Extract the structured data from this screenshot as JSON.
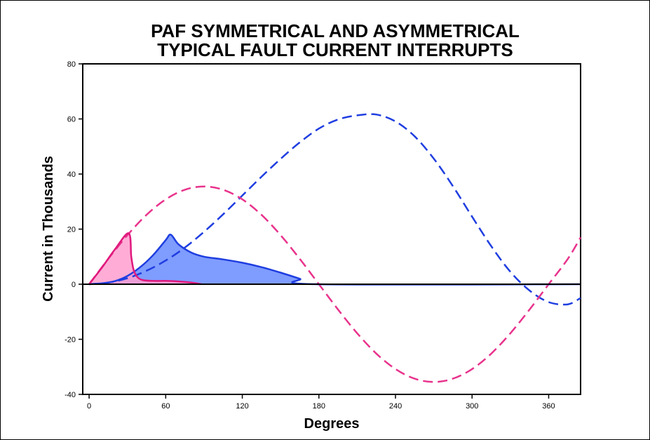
{
  "chart_data": {
    "type": "line",
    "title": [
      "PAF SYMMETRICAL AND ASYMMETRICAL",
      "TYPICAL FAULT CURRENT INTERRUPTS"
    ],
    "xlabel": "Degrees",
    "ylabel": "Current in Thousands",
    "xlim": [
      -5,
      385
    ],
    "ylim": [
      -40,
      80
    ],
    "xticks": [
      0,
      60,
      120,
      180,
      240,
      300,
      360
    ],
    "yticks": [
      -40,
      -20,
      0,
      20,
      40,
      60,
      80
    ],
    "grid": false,
    "legend": "none",
    "series": [
      {
        "style": "dashed",
        "color": "#1f3ee0",
        "x": [
          0,
          15,
          30,
          45,
          60,
          75,
          90,
          105,
          120,
          135,
          150,
          165,
          180,
          195,
          210,
          225,
          240,
          255,
          270,
          285,
          300,
          315,
          330,
          345,
          360,
          375,
          385
        ],
        "y": [
          0,
          0.6,
          2.2,
          4.9,
          8.6,
          13.3,
          19.0,
          25.4,
          32.2,
          39.0,
          45.5,
          51.5,
          56.5,
          59.8,
          61.3,
          61.6,
          59.1,
          53.7,
          45.6,
          35.6,
          24.5,
          13.8,
          4.5,
          -2.3,
          -6.5,
          -7.3,
          -5.0
        ]
      },
      {
        "style": "dashed",
        "color": "#e8338c",
        "x": [
          0,
          15,
          30,
          45,
          60,
          75,
          90,
          105,
          120,
          135,
          150,
          165,
          180,
          195,
          210,
          225,
          240,
          255,
          270,
          285,
          300,
          315,
          330,
          345,
          360,
          375,
          385
        ],
        "y": [
          0,
          9.2,
          17.8,
          25.2,
          30.8,
          34.3,
          35.5,
          34.3,
          30.8,
          25.2,
          17.8,
          9.2,
          0,
          -9.2,
          -17.8,
          -25.2,
          -30.8,
          -34.3,
          -35.5,
          -34.3,
          -30.8,
          -25.2,
          -17.8,
          -9.2,
          0,
          9.2,
          17.0
        ]
      },
      {
        "style": "solid-filled",
        "color": "#1f3ee0",
        "fill": "#7f9cff",
        "x": [
          0,
          10,
          20,
          30,
          40,
          50,
          60,
          64,
          70,
          80,
          90,
          105,
          120,
          135,
          150,
          165,
          178,
          385
        ],
        "y": [
          0,
          0.3,
          1.1,
          3.0,
          6.2,
          10.5,
          16.0,
          18.0,
          14.5,
          11.5,
          10.0,
          9.0,
          7.8,
          6.2,
          4.2,
          2.0,
          0,
          0
        ]
      },
      {
        "style": "solid-filled",
        "color": "#e0197d",
        "fill": "#ff9fcf",
        "x": [
          0,
          10,
          20,
          31,
          33,
          35,
          38,
          42,
          50,
          60,
          70,
          80,
          88
        ],
        "y": [
          0,
          6.0,
          12.5,
          18.5,
          10.0,
          5.0,
          2.5,
          1.5,
          1.2,
          1.2,
          1.0,
          0.6,
          0
        ]
      }
    ]
  }
}
